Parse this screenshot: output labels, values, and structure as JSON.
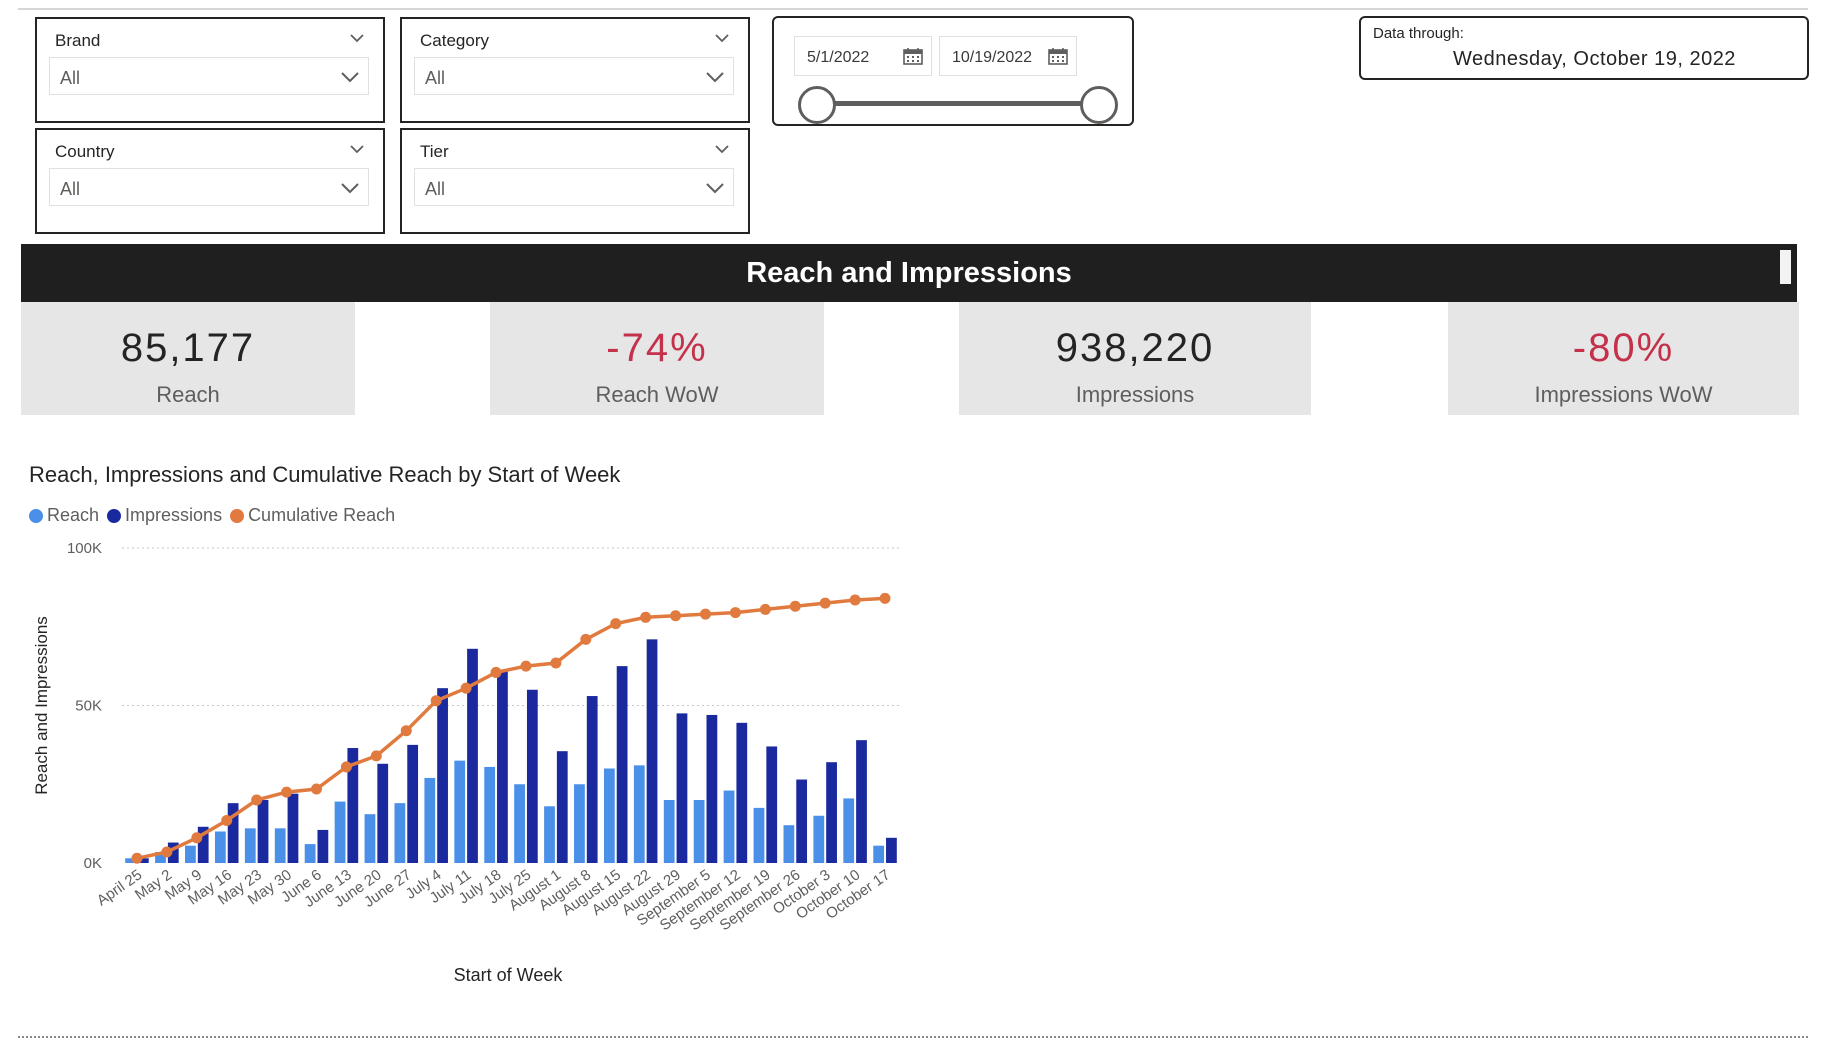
{
  "filters": {
    "brand": {
      "label": "Brand",
      "value": "All"
    },
    "category": {
      "label": "Category",
      "value": "All"
    },
    "country": {
      "label": "Country",
      "value": "All"
    },
    "tier": {
      "label": "Tier",
      "value": "All"
    }
  },
  "date_range": {
    "start": "5/1/2022",
    "end": "10/19/2022"
  },
  "data_through": {
    "label": "Data through:",
    "value": "Wednesday, October 19, 2022"
  },
  "banner": {
    "title": "Reach and Impressions"
  },
  "kpis": [
    {
      "value": "85,177",
      "caption": "Reach",
      "negative": false
    },
    {
      "value": "-74%",
      "caption": "Reach WoW",
      "negative": true
    },
    {
      "value": "938,220",
      "caption": "Impressions",
      "negative": false
    },
    {
      "value": "-80%",
      "caption": "Impressions WoW",
      "negative": true
    }
  ],
  "colors": {
    "reach": "#4a90e8",
    "impressions": "#1a2a9e",
    "cumulative": "#e07a3e",
    "red": "#c4314b"
  },
  "chart_data": {
    "type": "bar",
    "title": "Reach, Impressions and Cumulative Reach by Start of Week",
    "xlabel": "Start of Week",
    "ylabel": "Reach and Impressions",
    "ylim": [
      0,
      100000
    ],
    "yticks": [
      "0K",
      "50K",
      "100K"
    ],
    "legend": [
      "Reach",
      "Impressions",
      "Cumulative Reach"
    ],
    "categories": [
      "April 25",
      "May 2",
      "May 9",
      "May 16",
      "May 23",
      "May 30",
      "June 6",
      "June 13",
      "June 20",
      "June 27",
      "July 4",
      "July 11",
      "July 18",
      "July 25",
      "August 1",
      "August 8",
      "August 15",
      "August 22",
      "August 29",
      "September 5",
      "September 12",
      "September 19",
      "September 26",
      "October 3",
      "October 10",
      "October 17"
    ],
    "series": [
      {
        "name": "Reach",
        "type": "bar",
        "values": [
          1500,
          3500,
          5500,
          10000,
          11000,
          11000,
          6000,
          19500,
          15500,
          19000,
          27000,
          32500,
          30500,
          25000,
          18000,
          25000,
          30000,
          31000,
          20000,
          20000,
          23000,
          17500,
          12000,
          15000,
          20500,
          5500
        ]
      },
      {
        "name": "Impressions",
        "type": "bar",
        "values": [
          1500,
          6500,
          11500,
          19000,
          20000,
          22000,
          10500,
          36500,
          31500,
          37500,
          55500,
          68000,
          61000,
          55000,
          35500,
          53000,
          62500,
          71000,
          47500,
          47000,
          44500,
          37000,
          26500,
          32000,
          39000,
          8000
        ]
      },
      {
        "name": "Cumulative Reach",
        "type": "line",
        "values": [
          1500,
          3500,
          8000,
          13500,
          20000,
          22500,
          23500,
          30500,
          34000,
          42000,
          51500,
          55500,
          60500,
          62500,
          63500,
          71000,
          76000,
          78000,
          78500,
          79000,
          79500,
          80500,
          81500,
          82500,
          83500,
          84000
        ]
      }
    ]
  }
}
